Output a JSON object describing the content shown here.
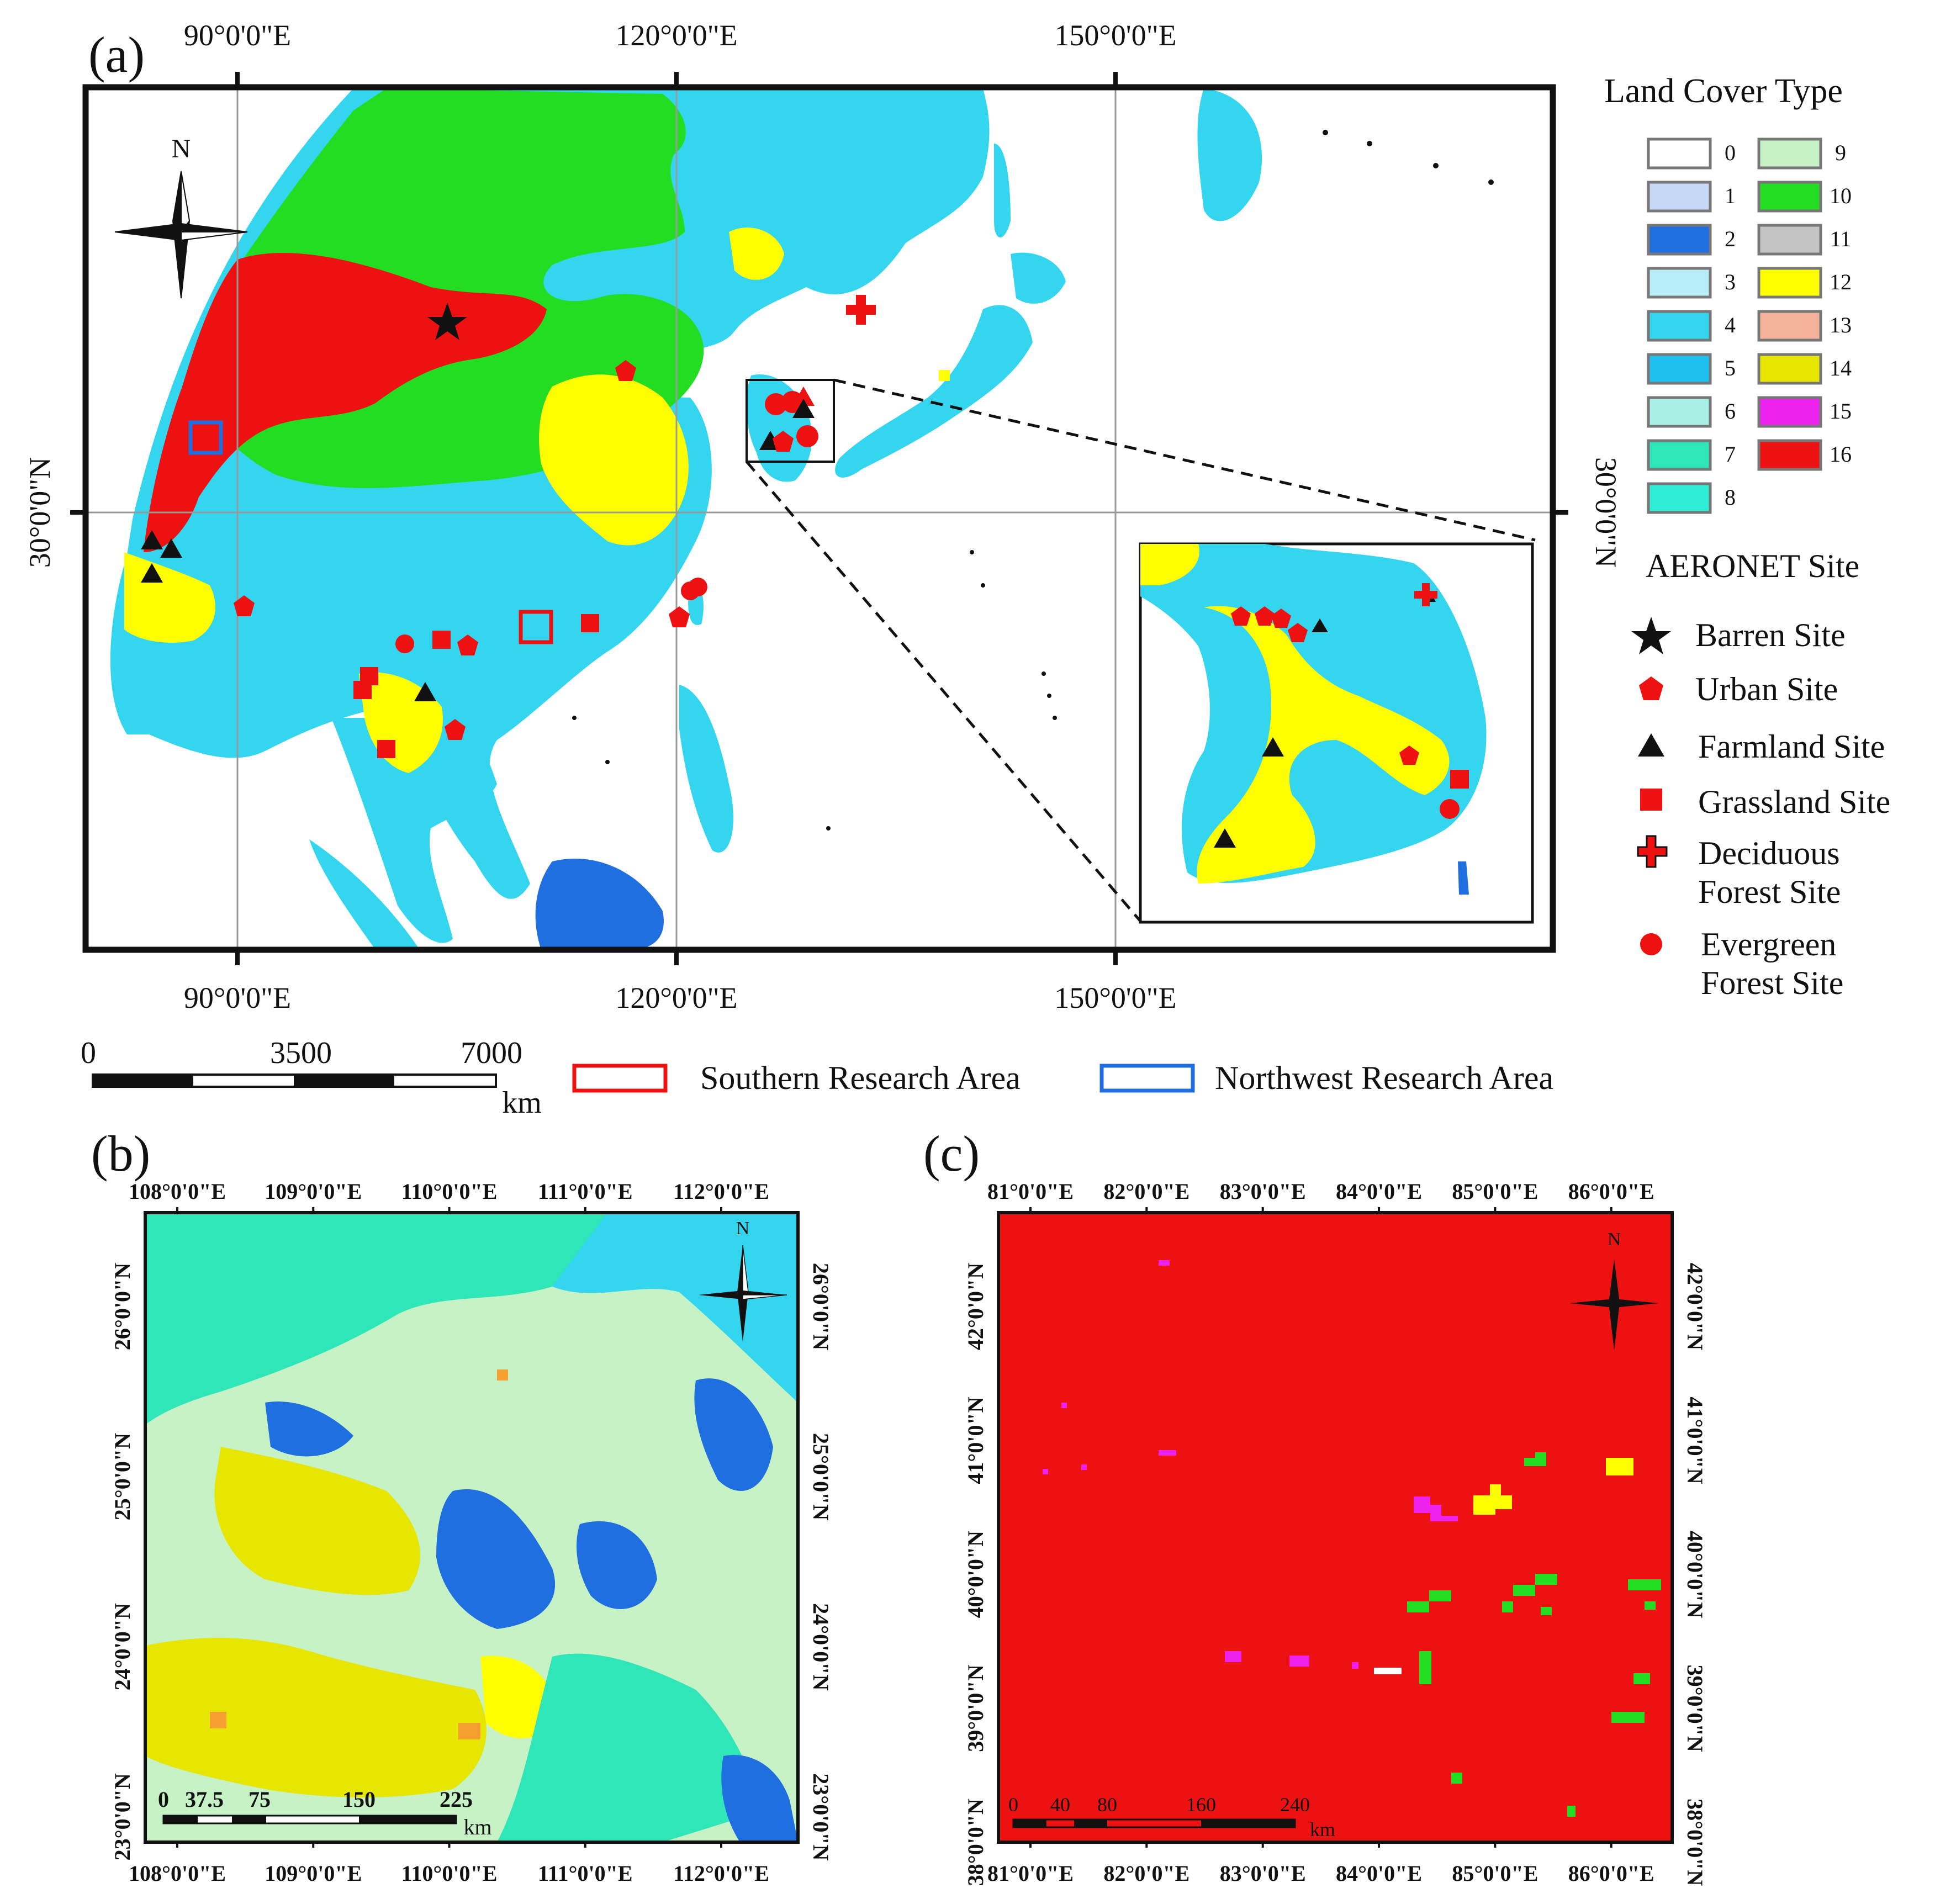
{
  "panels": {
    "a": {
      "label": "(a)",
      "lon_ticks": [
        "90°0'0\"E",
        "120°0'0\"E",
        "150°0'0\"E"
      ],
      "lat_tick": "30°0'0\"N",
      "north": "N",
      "scale": {
        "ticks": [
          "0",
          "3500",
          "7000"
        ],
        "unit": "km"
      }
    },
    "b": {
      "label": "(b)",
      "lon_ticks": [
        "108°0'0\"E",
        "109°0'0\"E",
        "110°0'0\"E",
        "111°0'0\"E",
        "112°0'0\"E"
      ],
      "lat_ticks": [
        "26°0'0\"N",
        "25°0'0\"N",
        "24°0'0\"N",
        "23°0'0\"N"
      ],
      "north": "N",
      "scale": {
        "ticks": [
          "0",
          "37.5",
          "75",
          "150",
          "225"
        ],
        "unit": "km"
      }
    },
    "c": {
      "label": "(c)",
      "lon_ticks": [
        "81°0'0\"E",
        "82°0'0\"E",
        "83°0'0\"E",
        "84°0'0\"E",
        "85°0'0\"E",
        "86°0'0\"E"
      ],
      "lat_ticks": [
        "42°0'0\"N",
        "41°0'0\"N",
        "40°0'0\"N",
        "39°0'0\"N",
        "38°0'0\"N"
      ],
      "north": "N",
      "scale": {
        "ticks": [
          "0",
          "40",
          "80",
          "160",
          "240"
        ],
        "unit": "km"
      }
    }
  },
  "legend": {
    "title": "Land Cover Type",
    "classes": [
      {
        "id": "0",
        "color": "#ffffff"
      },
      {
        "id": "1",
        "color": "#c6d8f5"
      },
      {
        "id": "2",
        "color": "#1f6fe0"
      },
      {
        "id": "3",
        "color": "#b8ecf8"
      },
      {
        "id": "4",
        "color": "#33d6ee"
      },
      {
        "id": "5",
        "color": "#1ec0f0"
      },
      {
        "id": "6",
        "color": "#a8f0e6"
      },
      {
        "id": "7",
        "color": "#2ee6b8"
      },
      {
        "id": "8",
        "color": "#2eeed8"
      },
      {
        "id": "9",
        "color": "#c6f2c6"
      },
      {
        "id": "10",
        "color": "#22dd22"
      },
      {
        "id": "11",
        "color": "#c4c4c4"
      },
      {
        "id": "12",
        "color": "#ffff00"
      },
      {
        "id": "13",
        "color": "#f5b29a"
      },
      {
        "id": "14",
        "color": "#e6e600"
      },
      {
        "id": "15",
        "color": "#ee22ee"
      },
      {
        "id": "16",
        "color": "#ee1111"
      }
    ],
    "sites_title": "AERONET Site",
    "sites": [
      {
        "label": "Barren Site",
        "symbol": "star-icon"
      },
      {
        "label": "Urban Site",
        "symbol": "pentagon-icon"
      },
      {
        "label": "Farmland Site",
        "symbol": "triangle-icon"
      },
      {
        "label": "Grassland Site",
        "symbol": "square-icon"
      },
      {
        "label": "Deciduous\nForest Site",
        "symbol": "cross-icon"
      },
      {
        "label": "Evergreen\nForest Site",
        "symbol": "circle-icon"
      }
    ]
  },
  "areas": [
    {
      "label": "Southern Research Area",
      "color": "#ee1111"
    },
    {
      "label": "Northwest Research Area",
      "color": "#1f6fe0"
    }
  ]
}
